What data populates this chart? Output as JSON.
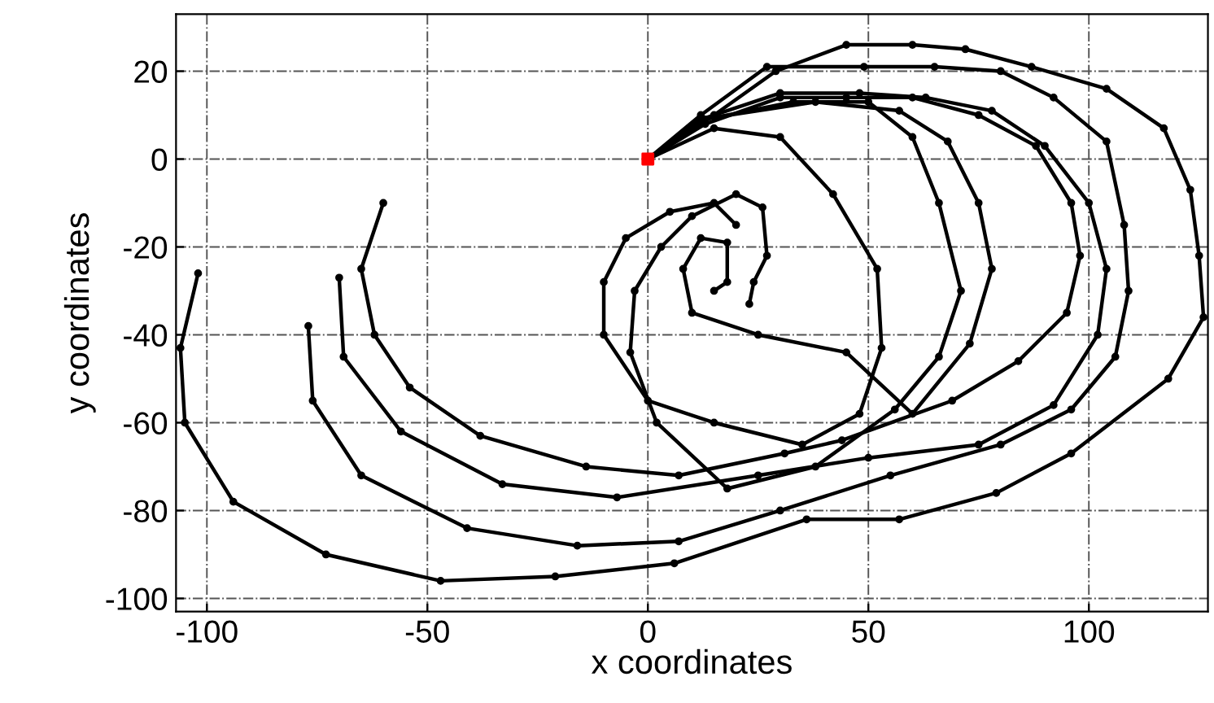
{
  "chart_data": {
    "type": "line",
    "xlabel": "x coordinates",
    "ylabel": "y coordinates",
    "xlim": [
      -107,
      127
    ],
    "ylim": [
      -103,
      33
    ],
    "xticks": [
      -100,
      -50,
      0,
      50,
      100
    ],
    "yticks": [
      -100,
      -80,
      -60,
      -40,
      -20,
      0,
      20
    ],
    "grid": true,
    "marker": "circle",
    "line_style": "solid",
    "series": [
      {
        "color": "#000000",
        "x": [
          0,
          15,
          29,
          45,
          60,
          72,
          87,
          104,
          117,
          123,
          125,
          126,
          118,
          96,
          79,
          57,
          36,
          6,
          -21,
          -47,
          -73,
          -94,
          -105,
          -106,
          -102
        ],
        "values": [
          0,
          10,
          20,
          26,
          26,
          25,
          21,
          16,
          7,
          -7,
          -22,
          -36,
          -50,
          -67,
          -76,
          -82,
          -82,
          -92,
          -95,
          -96,
          -90,
          -78,
          -60,
          -43,
          -26
        ]
      },
      {
        "color": "#000000",
        "x": [
          0,
          12,
          27,
          49,
          65,
          80,
          92,
          104,
          108,
          109,
          106,
          96,
          80,
          55,
          30,
          7,
          -16,
          -41,
          -65,
          -76,
          -77
        ],
        "values": [
          0,
          10,
          21,
          21,
          21,
          20,
          14,
          4,
          -15,
          -30,
          -45,
          -57,
          -65,
          -72,
          -80,
          -87,
          -88,
          -84,
          -72,
          -55,
          -38
        ]
      },
      {
        "color": "#000000",
        "x": [
          0,
          12,
          30,
          48,
          63,
          78,
          90,
          100,
          104,
          102,
          92,
          75,
          50,
          25,
          -7,
          -33,
          -56,
          -69,
          -70
        ],
        "values": [
          0,
          9,
          15,
          15,
          14,
          11,
          3,
          -10,
          -25,
          -40,
          -56,
          -65,
          -68,
          -72,
          -77,
          -74,
          -62,
          -45,
          -27
        ]
      },
      {
        "color": "#000000",
        "x": [
          0,
          13,
          30,
          45,
          60,
          75,
          88,
          96,
          98,
          95,
          84,
          69,
          44,
          31,
          7,
          -14,
          -38,
          -54,
          -62,
          -65,
          -60
        ],
        "values": [
          0,
          8,
          14,
          14,
          14,
          10,
          3,
          -10,
          -22,
          -35,
          -46,
          -55,
          -64,
          -67,
          -72,
          -70,
          -63,
          -52,
          -40,
          -25,
          -10
        ]
      },
      {
        "color": "#000000",
        "x": [
          0,
          15,
          30,
          42,
          52,
          53,
          48,
          35,
          15,
          0,
          -10,
          -10,
          -5,
          5,
          15,
          20
        ],
        "values": [
          0,
          7,
          5,
          -8,
          -25,
          -43,
          -58,
          -65,
          -60,
          -55,
          -40,
          -28,
          -18,
          -12,
          -10,
          -15
        ]
      },
      {
        "color": "#000000",
        "x": [
          0,
          13,
          33,
          50,
          60,
          66,
          71,
          66,
          56,
          38,
          18,
          2,
          -4,
          -3,
          3,
          10,
          20,
          26,
          27,
          24,
          23
        ],
        "values": [
          0,
          9,
          13,
          13,
          5,
          -10,
          -30,
          -45,
          -57,
          -70,
          -75,
          -60,
          -44,
          -30,
          -20,
          -13,
          -8,
          -11,
          -22,
          -28,
          -33
        ]
      },
      {
        "color": "#000000",
        "x": [
          0,
          12,
          38,
          57,
          68,
          75,
          78,
          73,
          60,
          45,
          25,
          10,
          8,
          12,
          18,
          18,
          15
        ],
        "values": [
          0,
          9,
          13,
          11,
          4,
          -10,
          -25,
          -42,
          -58,
          -44,
          -40,
          -35,
          -25,
          -18,
          -19,
          -28,
          -30
        ]
      },
      {
        "type": "scatter",
        "color": "#ff0000",
        "marker": "square",
        "x": [
          0
        ],
        "values": [
          0
        ]
      }
    ]
  }
}
